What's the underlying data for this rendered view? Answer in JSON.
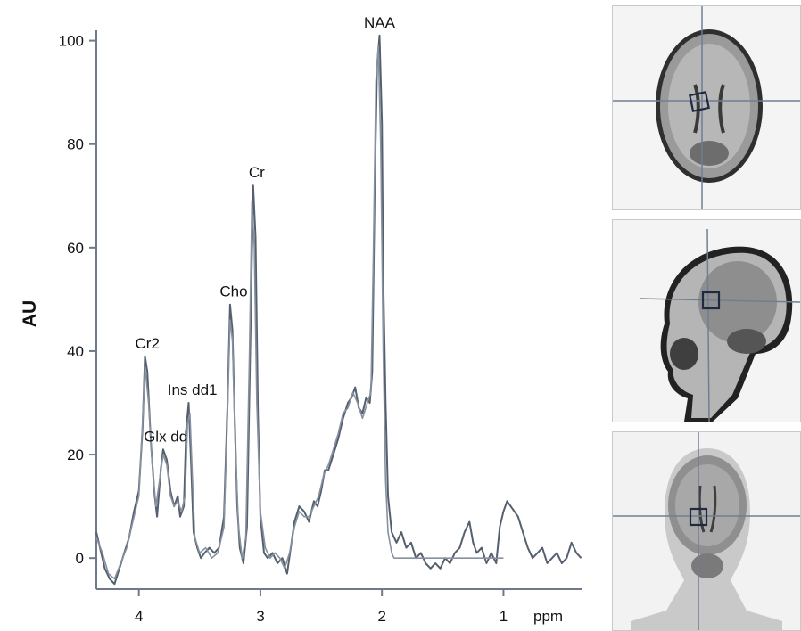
{
  "chart_data": {
    "type": "line",
    "title": "",
    "xlabel": "ppm",
    "ylabel": "AU",
    "x_reversed": true,
    "xlim": [
      4.35,
      0.35
    ],
    "ylim": [
      -6,
      102
    ],
    "x_ticks": [
      4,
      3,
      2,
      1
    ],
    "y_ticks": [
      0,
      20,
      40,
      60,
      80,
      100
    ],
    "grid": false,
    "annotations": [
      {
        "label": "NAA",
        "x": 2.02,
        "y": 101
      },
      {
        "label": "Cr",
        "x": 3.03,
        "y": 72
      },
      {
        "label": "Cho",
        "x": 3.22,
        "y": 49
      },
      {
        "label": "Cr2",
        "x": 3.93,
        "y": 39
      },
      {
        "label": "Ins dd1",
        "x": 3.56,
        "y": 30
      },
      {
        "label": "Glx dd",
        "x": 3.78,
        "y": 21
      }
    ],
    "series": [
      {
        "color": "#55606e",
        "points": [
          [
            4.35,
            5
          ],
          [
            4.32,
            2
          ],
          [
            4.28,
            -2
          ],
          [
            4.24,
            -4
          ],
          [
            4.2,
            -5
          ],
          [
            4.16,
            -2
          ],
          [
            4.12,
            1
          ],
          [
            4.08,
            4
          ],
          [
            4.04,
            9
          ],
          [
            4.0,
            13
          ],
          [
            3.97,
            25
          ],
          [
            3.95,
            39
          ],
          [
            3.93,
            36
          ],
          [
            3.9,
            22
          ],
          [
            3.87,
            12
          ],
          [
            3.85,
            8
          ],
          [
            3.82,
            17
          ],
          [
            3.8,
            21
          ],
          [
            3.77,
            19
          ],
          [
            3.74,
            13
          ],
          [
            3.71,
            10
          ],
          [
            3.68,
            12
          ],
          [
            3.66,
            8
          ],
          [
            3.63,
            10
          ],
          [
            3.61,
            25
          ],
          [
            3.59,
            30
          ],
          [
            3.57,
            18
          ],
          [
            3.55,
            5
          ],
          [
            3.52,
            2
          ],
          [
            3.49,
            0
          ],
          [
            3.46,
            1
          ],
          [
            3.42,
            2
          ],
          [
            3.38,
            1
          ],
          [
            3.34,
            2
          ],
          [
            3.3,
            8
          ],
          [
            3.27,
            30
          ],
          [
            3.25,
            49
          ],
          [
            3.23,
            44
          ],
          [
            3.21,
            26
          ],
          [
            3.19,
            10
          ],
          [
            3.17,
            2
          ],
          [
            3.14,
            -1
          ],
          [
            3.11,
            6
          ],
          [
            3.08,
            45
          ],
          [
            3.06,
            72
          ],
          [
            3.04,
            62
          ],
          [
            3.02,
            28
          ],
          [
            3.0,
            8
          ],
          [
            2.97,
            1
          ],
          [
            2.94,
            0
          ],
          [
            2.9,
            1
          ],
          [
            2.86,
            -1
          ],
          [
            2.82,
            0
          ],
          [
            2.78,
            -3
          ],
          [
            2.75,
            2
          ],
          [
            2.72,
            7
          ],
          [
            2.68,
            10
          ],
          [
            2.64,
            9
          ],
          [
            2.6,
            7
          ],
          [
            2.56,
            11
          ],
          [
            2.53,
            10
          ],
          [
            2.5,
            13
          ],
          [
            2.47,
            17
          ],
          [
            2.44,
            17
          ],
          [
            2.4,
            20
          ],
          [
            2.36,
            23
          ],
          [
            2.32,
            27
          ],
          [
            2.28,
            30
          ],
          [
            2.25,
            31
          ],
          [
            2.22,
            33
          ],
          [
            2.19,
            29
          ],
          [
            2.16,
            28
          ],
          [
            2.13,
            31
          ],
          [
            2.1,
            30
          ],
          [
            2.08,
            36
          ],
          [
            2.06,
            70
          ],
          [
            2.04,
            95
          ],
          [
            2.02,
            101
          ],
          [
            2.0,
            84
          ],
          [
            1.99,
            55
          ],
          [
            1.97,
            30
          ],
          [
            1.95,
            12
          ],
          [
            1.92,
            5
          ],
          [
            1.88,
            3
          ],
          [
            1.84,
            5
          ],
          [
            1.8,
            2
          ],
          [
            1.76,
            3
          ],
          [
            1.72,
            0
          ],
          [
            1.68,
            1
          ],
          [
            1.64,
            -1
          ],
          [
            1.6,
            -2
          ],
          [
            1.56,
            -1
          ],
          [
            1.52,
            -2
          ],
          [
            1.48,
            0
          ],
          [
            1.44,
            -1
          ],
          [
            1.4,
            1
          ],
          [
            1.36,
            2
          ],
          [
            1.32,
            5
          ],
          [
            1.28,
            7
          ],
          [
            1.25,
            3
          ],
          [
            1.22,
            1
          ],
          [
            1.18,
            2
          ],
          [
            1.14,
            -1
          ],
          [
            1.1,
            1
          ],
          [
            1.06,
            -1
          ],
          [
            1.03,
            6
          ],
          [
            1.0,
            9
          ],
          [
            0.97,
            11
          ],
          [
            0.94,
            10
          ],
          [
            0.91,
            9
          ],
          [
            0.88,
            8
          ],
          [
            0.84,
            5
          ],
          [
            0.8,
            2
          ],
          [
            0.76,
            0
          ],
          [
            0.72,
            1
          ],
          [
            0.68,
            2
          ],
          [
            0.64,
            -1
          ],
          [
            0.6,
            0
          ],
          [
            0.56,
            1
          ],
          [
            0.52,
            -1
          ],
          [
            0.48,
            0
          ],
          [
            0.44,
            3
          ],
          [
            0.4,
            1
          ],
          [
            0.36,
            0
          ]
        ]
      },
      {
        "color": "#8791a0",
        "points": [
          [
            4.35,
            4
          ],
          [
            4.3,
            1
          ],
          [
            4.25,
            -3
          ],
          [
            4.2,
            -4
          ],
          [
            4.15,
            -1
          ],
          [
            4.1,
            2
          ],
          [
            4.05,
            7
          ],
          [
            4.0,
            12
          ],
          [
            3.97,
            26
          ],
          [
            3.95,
            37
          ],
          [
            3.92,
            30
          ],
          [
            3.89,
            18
          ],
          [
            3.86,
            10
          ],
          [
            3.83,
            15
          ],
          [
            3.8,
            20
          ],
          [
            3.77,
            18
          ],
          [
            3.74,
            12
          ],
          [
            3.71,
            10
          ],
          [
            3.68,
            11
          ],
          [
            3.65,
            9
          ],
          [
            3.62,
            12
          ],
          [
            3.6,
            26
          ],
          [
            3.58,
            28
          ],
          [
            3.56,
            16
          ],
          [
            3.54,
            4
          ],
          [
            3.5,
            1
          ],
          [
            3.45,
            2
          ],
          [
            3.4,
            0
          ],
          [
            3.35,
            1
          ],
          [
            3.3,
            6
          ],
          [
            3.27,
            28
          ],
          [
            3.25,
            46
          ],
          [
            3.23,
            42
          ],
          [
            3.21,
            24
          ],
          [
            3.18,
            6
          ],
          [
            3.15,
            0
          ],
          [
            3.12,
            4
          ],
          [
            3.09,
            40
          ],
          [
            3.07,
            69
          ],
          [
            3.05,
            60
          ],
          [
            3.03,
            30
          ],
          [
            3.0,
            9
          ],
          [
            2.96,
            2
          ],
          [
            2.92,
            0
          ],
          [
            2.88,
            1
          ],
          [
            2.84,
            0
          ],
          [
            2.8,
            -2
          ],
          [
            2.76,
            1
          ],
          [
            2.72,
            6
          ],
          [
            2.68,
            9
          ],
          [
            2.64,
            8
          ],
          [
            2.6,
            8
          ],
          [
            2.56,
            10
          ],
          [
            2.52,
            12
          ],
          [
            2.48,
            16
          ],
          [
            2.44,
            18
          ],
          [
            2.4,
            21
          ],
          [
            2.36,
            24
          ],
          [
            2.32,
            28
          ],
          [
            2.28,
            29
          ],
          [
            2.24,
            32
          ],
          [
            2.2,
            30
          ],
          [
            2.16,
            27
          ],
          [
            2.12,
            30
          ],
          [
            2.09,
            32
          ],
          [
            2.07,
            60
          ],
          [
            2.05,
            92
          ],
          [
            2.03,
            99
          ],
          [
            2.01,
            80
          ],
          [
            1.99,
            40
          ],
          [
            1.97,
            15
          ],
          [
            1.95,
            5
          ],
          [
            1.92,
            1
          ],
          [
            1.9,
            0
          ],
          [
            1.8,
            0
          ],
          [
            1.7,
            0
          ],
          [
            1.6,
            0
          ],
          [
            1.5,
            0
          ],
          [
            1.4,
            0
          ],
          [
            1.3,
            0
          ],
          [
            1.2,
            0
          ],
          [
            1.1,
            0
          ],
          [
            1.0,
            0
          ]
        ]
      }
    ]
  },
  "images": [
    {
      "name": "mri-axial-view"
    },
    {
      "name": "mri-sagittal-view"
    },
    {
      "name": "mri-coronal-view"
    }
  ]
}
